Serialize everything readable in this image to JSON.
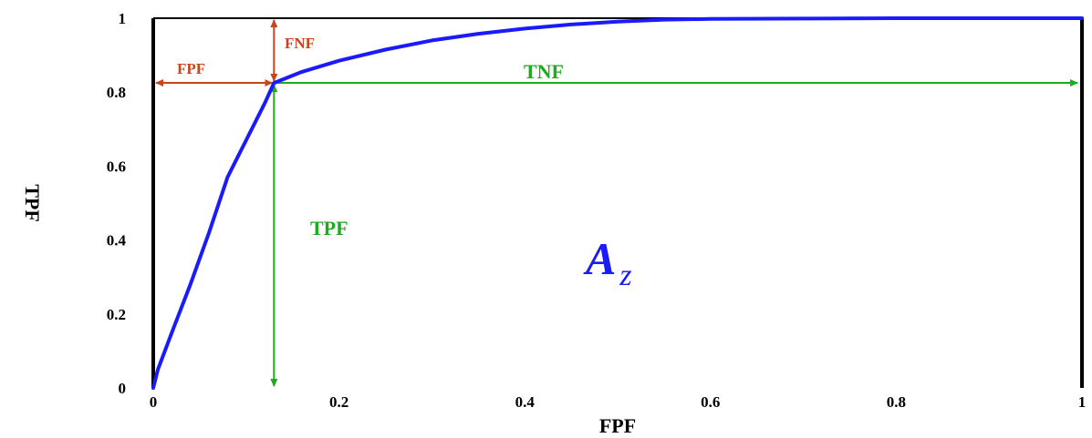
{
  "chart_data": {
    "type": "line",
    "title": "",
    "xlabel": "FPF",
    "ylabel": "TPF",
    "xlim": [
      0,
      1
    ],
    "ylim": [
      0,
      1
    ],
    "x_ticks": [
      0,
      0.2,
      0.4,
      0.6,
      0.8,
      1
    ],
    "y_ticks": [
      0,
      0.2,
      0.4,
      0.6,
      0.8,
      1
    ],
    "x_tick_labels": [
      "0",
      "0.2",
      "0.4",
      "0.6",
      "0.8",
      "1"
    ],
    "y_tick_labels": [
      "0",
      "0.2",
      "0.4",
      "0.6",
      "0.8",
      "1"
    ],
    "grid": false,
    "legend": "none",
    "series": [
      {
        "color": "#1a1aff",
        "points": [
          [
            0,
            0
          ],
          [
            0.005,
            0.05
          ],
          [
            0.02,
            0.15
          ],
          [
            0.04,
            0.28
          ],
          [
            0.06,
            0.42
          ],
          [
            0.08,
            0.57
          ],
          [
            0.1,
            0.67
          ],
          [
            0.12,
            0.77
          ],
          [
            0.13,
            0.825
          ],
          [
            0.16,
            0.855
          ],
          [
            0.2,
            0.885
          ],
          [
            0.25,
            0.915
          ],
          [
            0.3,
            0.94
          ],
          [
            0.35,
            0.958
          ],
          [
            0.4,
            0.972
          ],
          [
            0.45,
            0.983
          ],
          [
            0.5,
            0.991
          ],
          [
            0.55,
            0.996
          ],
          [
            0.6,
            0.998
          ],
          [
            0.7,
            0.999
          ],
          [
            0.8,
            1.0
          ],
          [
            1.0,
            1.0
          ]
        ]
      }
    ],
    "operating_point": {
      "fpf": 0.13,
      "tpf": 0.825
    },
    "annotations": {
      "fnf": "FNF",
      "fpf": "FPF",
      "tnf": "TNF",
      "tpf": "TPF",
      "area_main": "A",
      "area_sub": "z"
    },
    "colors": {
      "curve": "#1a1aff",
      "red_annotation": "#c8461e",
      "green_annotation": "#1faa1f",
      "area_label": "#1a1aff",
      "axes": "#000000"
    }
  }
}
